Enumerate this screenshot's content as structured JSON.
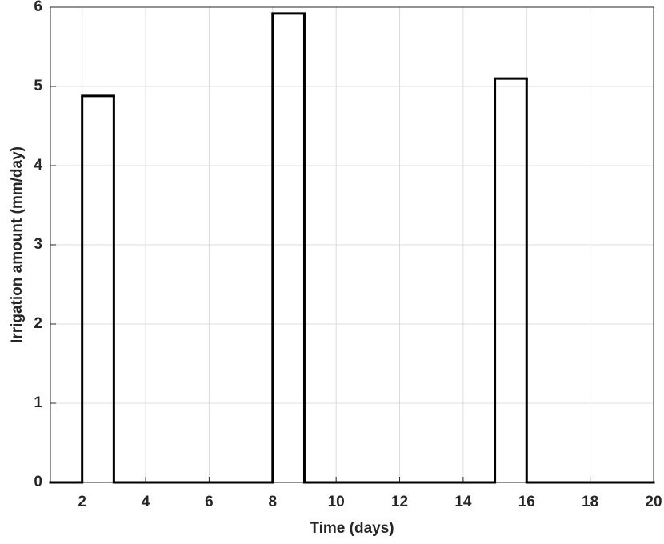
{
  "chart_data": {
    "type": "stairs",
    "xlabel": "Time (days)",
    "ylabel": "Irrigation amount (mm/day)",
    "x": [
      1,
      2,
      3,
      4,
      5,
      6,
      7,
      8,
      9,
      10,
      11,
      12,
      13,
      14,
      15,
      16,
      17,
      18,
      19,
      20
    ],
    "series": [
      {
        "color": "#000000",
        "values": [
          0,
          4.88,
          0,
          0,
          0,
          0,
          0,
          5.92,
          0,
          0,
          0,
          0,
          0,
          0,
          5.1,
          0,
          0,
          0,
          0,
          0
        ]
      }
    ],
    "xlim": [
      1,
      20
    ],
    "xticks": [
      2,
      4,
      6,
      8,
      10,
      12,
      14,
      16,
      18,
      20
    ],
    "ylim": [
      0,
      6
    ],
    "yticks": [
      0,
      1,
      2,
      3,
      4,
      5,
      6
    ],
    "grid": true
  }
}
